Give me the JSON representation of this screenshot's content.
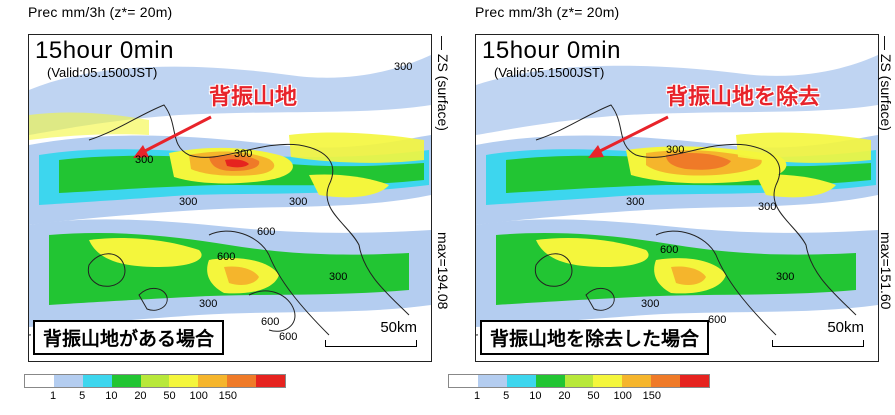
{
  "panels": [
    {
      "header": "Prec mm/3h (z*= 20m)",
      "time": "15hour 0min",
      "valid": "(Valid:05.1500JST)",
      "annotation": "背振山地",
      "case_label": "背振山地がある場合",
      "scale_label": "50km",
      "side_top": "— ZS (surface)",
      "side_max": "max=194.08",
      "contour_labels": [
        "300",
        "300",
        "300",
        "300",
        "600",
        "600",
        "300",
        "300",
        "600",
        "600",
        "300"
      ]
    },
    {
      "header": "Prec mm/3h (z*= 20m)",
      "time": "15hour 0min",
      "valid": "(Valid:05.1500JST)",
      "annotation": "背振山地を除去",
      "case_label": "背振山地を除去した場合",
      "scale_label": "50km",
      "side_top": "— ZS (surface)",
      "side_max": "max=151.60",
      "contour_labels": [
        "300",
        "300",
        "300",
        "600",
        "600",
        "300",
        "300"
      ]
    }
  ],
  "legend": {
    "ticks": [
      "1",
      "5",
      "10",
      "20",
      "50",
      "100",
      "150"
    ],
    "colors": [
      "#ffffff",
      "#b4cdf0",
      "#3dd6ee",
      "#22c533",
      "#b8e83a",
      "#f4f63c",
      "#f5b52c",
      "#ef7a28",
      "#e6231f"
    ]
  }
}
